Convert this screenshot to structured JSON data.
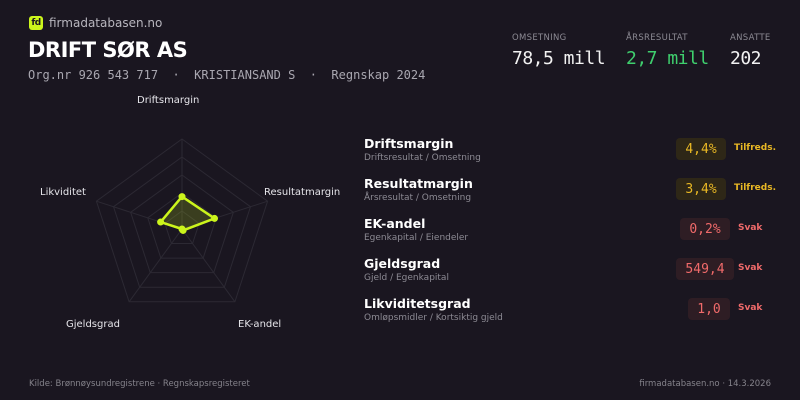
{
  "brand": {
    "logo_text": "fd",
    "site": "firmadatabasen.no",
    "accent": "#ccf51c"
  },
  "company": {
    "name": "DRIFT SØR AS",
    "subtitle": "Org.nr 926 543 717  ·  KRISTIANSAND S  ·  Regnskap 2024"
  },
  "kpis": [
    {
      "label": "OMSETNING",
      "value": "78,5 mill",
      "color": "#f2f2f2"
    },
    {
      "label": "ÅRSRESULTAT",
      "value": "2,7 mill",
      "color": "#3fcf6e"
    },
    {
      "label": "ANSATTE",
      "value": "202",
      "color": "#f2f2f2"
    }
  ],
  "radar": {
    "axes": [
      "Driftsmargin",
      "Resultatmargin",
      "EK-andel",
      "Gjeldsgrad",
      "Likviditet"
    ],
    "scores": [
      0.36,
      0.38,
      0.02,
      0.0,
      0.25
    ],
    "rings": 5
  },
  "ratios": [
    {
      "name": "Driftsmargin",
      "desc": "Driftsresultat / Omsetning",
      "value": "4,4%",
      "status": "Tilfreds.",
      "color": "#e9b824",
      "bg": "#2e2717"
    },
    {
      "name": "Resultatmargin",
      "desc": "Årsresultat / Omsetning",
      "value": "3,4%",
      "status": "Tilfreds.",
      "color": "#e9b824",
      "bg": "#2e2717"
    },
    {
      "name": "EK-andel",
      "desc": "Egenkapital / Eiendeler",
      "value": "0,2%",
      "status": "Svak",
      "color": "#f06a6a",
      "bg": "#2e1d24"
    },
    {
      "name": "Gjeldsgrad",
      "desc": "Gjeld / Egenkapital",
      "value": "549,4",
      "status": "Svak",
      "color": "#f06a6a",
      "bg": "#2e1d24"
    },
    {
      "name": "Likviditetsgrad",
      "desc": "Omløpsmidler / Kortsiktig gjeld",
      "value": "1,0",
      "status": "Svak",
      "color": "#f06a6a",
      "bg": "#2e1d24"
    }
  ],
  "footer": {
    "source": "Kilde: Brønnøysundregistrene · Regnskapsregisteret",
    "site_date": "firmadatabasen.no · 14.3.2026"
  }
}
